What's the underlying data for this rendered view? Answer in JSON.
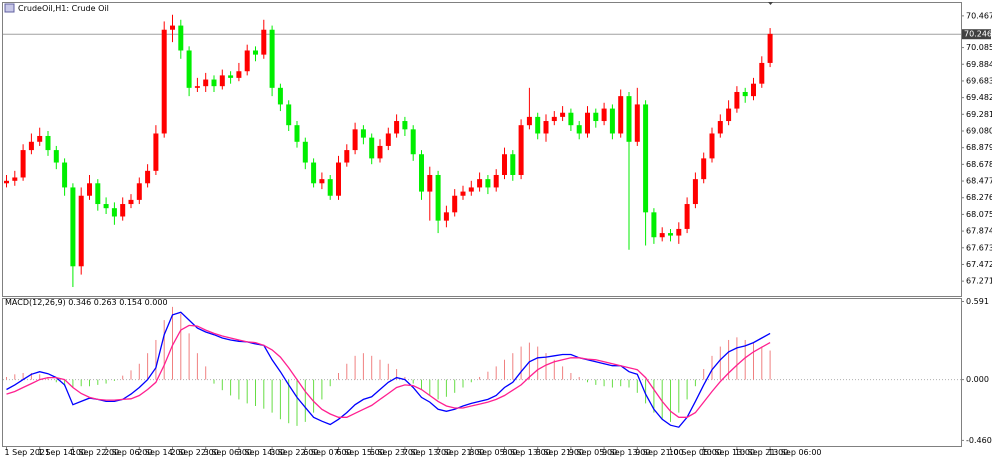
{
  "chart_data": [
    {
      "type": "candlestick",
      "title": "CrudeOil,H1: Crude Oil",
      "categories": [
        "1 Sep 2021",
        null,
        null,
        null,
        "1 Sep 14:00",
        null,
        null,
        null,
        "1 Sep 22:00",
        null,
        null,
        null,
        "2 Sep 06:00",
        null,
        null,
        null,
        "2 Sep 14:00",
        null,
        null,
        null,
        "2 Sep 22:00",
        null,
        null,
        null,
        "3 Sep 06:00",
        null,
        null,
        null,
        "3 Sep 14:00",
        null,
        null,
        null,
        "3 Sep 22:00",
        null,
        null,
        null,
        "6 Sep 07:00",
        null,
        null,
        null,
        "6 Sep 15:00",
        null,
        null,
        null,
        "6 Sep 23:00",
        null,
        null,
        null,
        "7 Sep 13:00",
        null,
        null,
        null,
        "7 Sep 21:00",
        null,
        null,
        null,
        "8 Sep 05:00",
        null,
        null,
        null,
        "8 Sep 13:00",
        null,
        null,
        null,
        "8 Sep 21:00",
        null,
        null,
        null,
        "9 Sep 05:00",
        null,
        null,
        null,
        "9 Sep 13:00",
        null,
        null,
        null,
        "9 Sep 21:00",
        null,
        null,
        null,
        "10 Sep 05:00",
        null,
        null,
        null,
        "10 Sep 13:00",
        null,
        null,
        null,
        "10 Sep 21:00",
        null,
        null,
        null,
        "13 Sep 06:00"
      ],
      "open": [
        68.45,
        68.48,
        68.52,
        68.85,
        68.95,
        69.02,
        68.85,
        68.7,
        68.4,
        67.45,
        68.3,
        68.45,
        68.2,
        68.15,
        68.05,
        68.2,
        68.25,
        68.45,
        68.6,
        69.05,
        70.3,
        70.35,
        70.05,
        69.6,
        69.62,
        69.7,
        69.62,
        69.75,
        69.72,
        69.8,
        70.05,
        70.0,
        70.3,
        69.6,
        69.4,
        69.15,
        68.95,
        68.7,
        68.45,
        68.5,
        68.3,
        68.7,
        68.85,
        69.1,
        69.0,
        68.75,
        68.9,
        69.05,
        69.2,
        69.1,
        68.8,
        68.35,
        68.55,
        68.0,
        68.1,
        68.3,
        68.35,
        68.4,
        68.5,
        68.4,
        68.55,
        68.8,
        68.55,
        69.15,
        69.25,
        69.05,
        69.2,
        69.25,
        69.3,
        69.15,
        69.05,
        69.3,
        69.2,
        69.35,
        69.05,
        69.5,
        68.95,
        69.4,
        68.1,
        67.8,
        67.85,
        67.82,
        67.9,
        68.2,
        68.5,
        68.75,
        69.05,
        69.2,
        69.35,
        69.55,
        69.5,
        69.65,
        69.9
      ],
      "high": [
        68.55,
        68.6,
        68.92,
        69.05,
        69.12,
        69.08,
        68.9,
        68.75,
        68.45,
        68.4,
        68.55,
        68.5,
        68.28,
        68.22,
        68.28,
        68.32,
        68.52,
        68.68,
        69.15,
        70.4,
        70.48,
        70.42,
        70.1,
        69.72,
        69.78,
        69.75,
        69.82,
        69.8,
        69.9,
        70.12,
        70.1,
        70.42,
        70.35,
        69.65,
        69.45,
        69.2,
        69.0,
        68.75,
        68.58,
        68.55,
        68.78,
        68.92,
        69.18,
        69.15,
        69.05,
        68.98,
        69.12,
        69.28,
        69.25,
        69.15,
        68.85,
        68.65,
        68.6,
        68.18,
        68.38,
        68.42,
        68.48,
        68.58,
        68.55,
        68.62,
        68.88,
        68.85,
        69.22,
        69.6,
        69.3,
        69.28,
        69.32,
        69.38,
        69.35,
        69.2,
        69.38,
        69.35,
        69.42,
        69.4,
        69.58,
        69.55,
        69.6,
        69.45,
        68.15,
        67.92,
        67.9,
        67.98,
        68.28,
        68.58,
        68.82,
        69.12,
        69.28,
        69.45,
        69.62,
        69.6,
        69.72,
        69.98,
        70.32
      ],
      "low": [
        68.4,
        68.42,
        68.48,
        68.8,
        68.9,
        68.78,
        68.62,
        68.3,
        67.2,
        67.35,
        68.25,
        68.12,
        68.08,
        67.95,
        68.0,
        68.15,
        68.2,
        68.4,
        68.55,
        69.0,
        70.15,
        69.95,
        69.5,
        69.55,
        69.55,
        69.55,
        69.58,
        69.65,
        69.68,
        69.75,
        69.92,
        69.95,
        69.5,
        69.32,
        69.08,
        68.88,
        68.62,
        68.4,
        68.38,
        68.25,
        68.25,
        68.65,
        68.8,
        68.92,
        68.68,
        68.7,
        68.85,
        69.0,
        69.02,
        68.72,
        68.25,
        68.0,
        67.85,
        67.92,
        68.05,
        68.25,
        68.3,
        68.35,
        68.32,
        68.35,
        68.5,
        68.48,
        68.5,
        69.1,
        68.98,
        68.95,
        69.15,
        69.2,
        69.08,
        68.98,
        69.0,
        69.12,
        69.15,
        68.98,
        69.0,
        67.65,
        68.9,
        67.7,
        67.72,
        67.75,
        67.75,
        67.72,
        67.85,
        68.15,
        68.45,
        68.7,
        69.0,
        69.15,
        69.3,
        69.42,
        69.45,
        69.6,
        69.85
      ],
      "close": [
        68.48,
        68.52,
        68.85,
        68.95,
        69.02,
        68.85,
        68.7,
        68.4,
        67.45,
        68.3,
        68.45,
        68.2,
        68.15,
        68.05,
        68.2,
        68.25,
        68.45,
        68.6,
        69.05,
        70.3,
        70.35,
        70.05,
        69.6,
        69.62,
        69.7,
        69.62,
        69.75,
        69.72,
        69.8,
        70.05,
        70.0,
        70.3,
        69.6,
        69.4,
        69.15,
        68.95,
        68.7,
        68.45,
        68.5,
        68.3,
        68.7,
        68.85,
        69.1,
        69.0,
        68.75,
        68.9,
        69.05,
        69.2,
        69.1,
        68.8,
        68.35,
        68.55,
        68.0,
        68.1,
        68.3,
        68.35,
        68.4,
        68.5,
        68.4,
        68.55,
        68.8,
        68.55,
        69.15,
        69.25,
        69.05,
        69.2,
        69.25,
        69.3,
        69.15,
        69.05,
        69.3,
        69.2,
        69.35,
        69.05,
        69.5,
        68.95,
        69.4,
        68.1,
        67.8,
        67.85,
        67.82,
        67.9,
        68.2,
        68.5,
        68.75,
        69.05,
        69.2,
        69.35,
        69.55,
        69.5,
        69.65,
        69.9,
        70.25
      ],
      "up_color": "#ff0000",
      "down_color": "#00ee00",
      "current_price": 70.246,
      "current_price_color": "#a0a0a0",
      "ylim": [
        67.08,
        70.61
      ],
      "yticks": [
        70.467,
        70.085,
        69.884,
        69.683,
        69.482,
        69.281,
        {
          "value": 69.08,
          "label": "69.080"
        },
        68.879,
        68.678,
        68.477,
        68.276,
        68.075,
        67.874,
        67.673,
        67.472,
        67.271
      ]
    },
    {
      "type": "macd",
      "title": "MACD(12,26,9) 0.346 0.263 0.154 0.000",
      "histogram": {
        "up_color": "#f08080",
        "down_color": "#66dd44",
        "values": [
          0.02,
          0.04,
          0.05,
          0.05,
          0.04,
          0.02,
          -0.02,
          -0.05,
          -0.06,
          -0.05,
          -0.05,
          -0.04,
          -0.03,
          -0.01,
          0.03,
          0.07,
          0.12,
          0.2,
          0.3,
          0.45,
          0.55,
          0.5,
          0.35,
          0.2,
          0.1,
          -0.03,
          -0.08,
          -0.12,
          -0.15,
          -0.18,
          -0.2,
          -0.22,
          -0.25,
          -0.3,
          -0.33,
          -0.35,
          -0.32,
          -0.25,
          -0.15,
          -0.05,
          0.05,
          0.12,
          0.18,
          0.2,
          0.18,
          0.15,
          0.12,
          0.08,
          0.02,
          -0.03,
          -0.08,
          -0.12,
          -0.15,
          -0.13,
          -0.1,
          -0.06,
          -0.02,
          0.02,
          0.06,
          0.1,
          0.15,
          0.2,
          0.25,
          0.28,
          0.25,
          0.2,
          0.15,
          0.1,
          0.05,
          0.02,
          -0.02,
          -0.04,
          -0.05,
          -0.06,
          -0.05,
          -0.06,
          -0.1,
          -0.18,
          -0.25,
          -0.3,
          -0.32,
          -0.25,
          -0.15,
          -0.05,
          0.08,
          0.18,
          0.25,
          0.3,
          0.32,
          0.3,
          0.28,
          0.25,
          0.22
        ]
      },
      "series": [
        {
          "color": "#0000ff",
          "values": [
            -0.075,
            -0.04,
            0,
            0.04,
            0.06,
            0.045,
            0.015,
            -0.04,
            -0.19,
            -0.165,
            -0.14,
            -0.15,
            -0.165,
            -0.165,
            -0.15,
            -0.11,
            -0.06,
            0,
            0.09,
            0.34,
            0.49,
            0.51,
            0.45,
            0.39,
            0.36,
            0.34,
            0.315,
            0.3,
            0.29,
            0.285,
            0.27,
            0.26,
            0.15,
            0.06,
            -0.04,
            -0.135,
            -0.21,
            -0.285,
            -0.315,
            -0.34,
            -0.3,
            -0.25,
            -0.19,
            -0.15,
            -0.13,
            -0.075,
            -0.02,
            0.015,
            0,
            -0.06,
            -0.135,
            -0.17,
            -0.225,
            -0.24,
            -0.225,
            -0.2,
            -0.18,
            -0.165,
            -0.15,
            -0.12,
            -0.06,
            -0.02,
            0.06,
            0.135,
            0.165,
            0.17,
            0.18,
            0.19,
            0.19,
            0.165,
            0.15,
            0.135,
            0.12,
            0.105,
            0.105,
            0.06,
            0.04,
            -0.11,
            -0.225,
            -0.3,
            -0.345,
            -0.36,
            -0.285,
            -0.165,
            -0.04,
            0.075,
            0.15,
            0.21,
            0.24,
            0.255,
            0.28,
            0.315,
            0.35
          ]
        },
        {
          "color": "#ff2090",
          "values": [
            -0.11,
            -0.09,
            -0.06,
            -0.03,
            0,
            0.015,
            0.015,
            0,
            -0.06,
            -0.105,
            -0.135,
            -0.15,
            -0.155,
            -0.155,
            -0.15,
            -0.145,
            -0.12,
            -0.075,
            -0.02,
            0.11,
            0.26,
            0.375,
            0.41,
            0.405,
            0.375,
            0.35,
            0.33,
            0.315,
            0.3,
            0.285,
            0.28,
            0.26,
            0.225,
            0.17,
            0.09,
            0,
            -0.09,
            -0.165,
            -0.225,
            -0.26,
            -0.285,
            -0.285,
            -0.255,
            -0.225,
            -0.195,
            -0.15,
            -0.105,
            -0.06,
            -0.04,
            -0.045,
            -0.075,
            -0.12,
            -0.165,
            -0.2,
            -0.215,
            -0.215,
            -0.2,
            -0.185,
            -0.17,
            -0.15,
            -0.12,
            -0.08,
            -0.04,
            0.02,
            0.075,
            0.11,
            0.135,
            0.15,
            0.165,
            0.165,
            0.155,
            0.15,
            0.135,
            0.12,
            0.105,
            0.09,
            0.075,
            0.015,
            -0.075,
            -0.165,
            -0.24,
            -0.285,
            -0.285,
            -0.25,
            -0.17,
            -0.09,
            -0.015,
            0.05,
            0.11,
            0.165,
            0.21,
            0.245,
            0.28
          ]
        }
      ],
      "ylim": [
        -0.51,
        0.61
      ],
      "yticks": [
        0.591,
        {
          "value": 0,
          "label": "0.000"
        },
        {
          "value": -0.46,
          "label": "-0.460"
        }
      ]
    }
  ]
}
